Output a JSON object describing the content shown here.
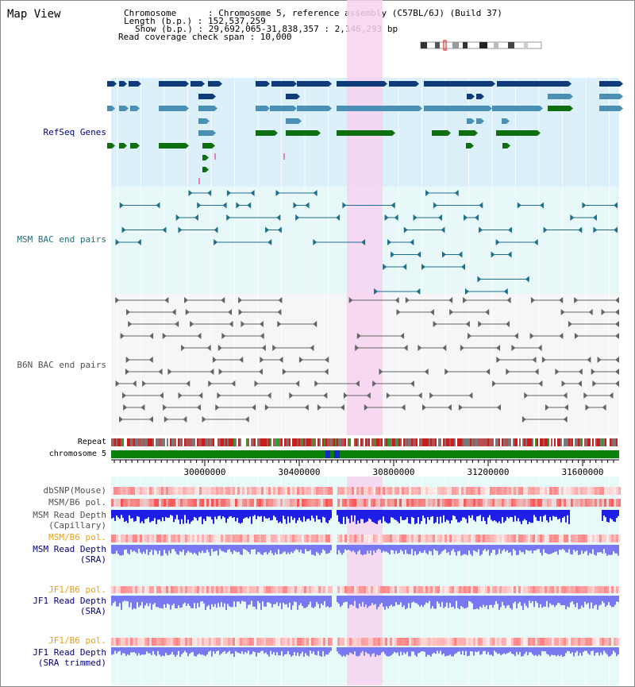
{
  "title": "Map View",
  "header": {
    "chromosome": "Chromosome      : Chromosome 5, reference assembly (C57BL/6J) (Build 37)",
    "length": "Length (b.p.) : 152,537,259",
    "show": "Show (b.p.) : 29,692,065-31,838,357 : 2,146,293 bp",
    "coverage": "Read coverage check span : 10,000"
  },
  "tracks": {
    "refseq": "RefSeq Genes",
    "msm_bac": "MSM BAC end pairs",
    "b6n_bac": "B6N BAC end pairs",
    "repeat": "Repeat",
    "chromosome": "chromosome 5",
    "dbsnp": "dbSNP(Mouse)",
    "msm_b6_pol": "MSM/B6 pol.",
    "msm_depth_cap": "MSM Read Depth",
    "msm_depth_cap2": "(Capillary)",
    "msm_b6_pol2": "MSM/B6 pol.",
    "msm_depth_sra": "MSM Read Depth",
    "msm_depth_sra2": "(SRA)",
    "jf1_pol": "JF1/B6 pol.",
    "jf1_depth": "JF1 Read Depth",
    "jf1_depth2": "(SRA)",
    "jf1_pol2": "JF1/B6 pol.",
    "jf1_depth_t": "JF1 Read Depth",
    "jf1_depth_t2": "(SRA trimmed)"
  },
  "axis": {
    "ticks": [
      "30000000",
      "30400000",
      "30800000",
      "31200000",
      "31600000"
    ]
  },
  "colors": {
    "refseq_bg": "#dcf0fa",
    "highlight": "#f7d2f0",
    "dark_gene": "#0f3c78",
    "mid_gene": "#4b8fb4",
    "green_gene": "#0f6e0f",
    "msm_line": "#1e6e8c",
    "b6n_line": "#646464",
    "chrom_green": "#0a820a",
    "depth_blue": "#1e1ee6",
    "depth_light": "#7878f0",
    "label_navy": "#000080",
    "label_orange": "#e6a014",
    "label_teal": "#1e6e78",
    "label_gray": "#505050"
  }
}
